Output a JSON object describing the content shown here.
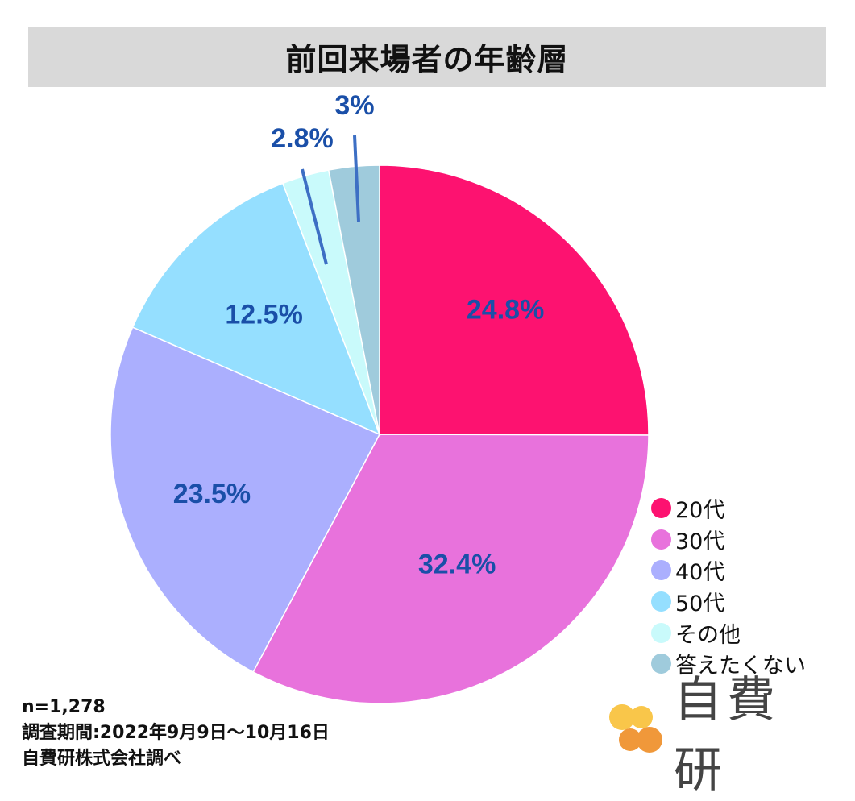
{
  "chart_data": {
    "type": "pie",
    "title": "前回来場者の年齢層",
    "slices": [
      {
        "label": "20代",
        "value": 24.8,
        "display": "24.8%",
        "color": "#fd1270"
      },
      {
        "label": "30代",
        "value": 32.4,
        "display": "32.4%",
        "color": "#e872dc"
      },
      {
        "label": "40代",
        "value": 23.5,
        "display": "23.5%",
        "color": "#abaffe"
      },
      {
        "label": "50代",
        "value": 12.5,
        "display": "12.5%",
        "color": "#95dfff"
      },
      {
        "label": "その他",
        "value": 2.8,
        "display": "2.8%",
        "color": "#c9fafb"
      },
      {
        "label": "答えたくない",
        "value": 3,
        "display": "3%",
        "color": "#9fcbdc"
      }
    ],
    "start": "12 o'clock",
    "direction": "clockwise",
    "label_color": "#1a4fa8",
    "legend_position": "right-bottom"
  },
  "footnote": {
    "sample": "n=1,278",
    "period": "調査期間:2022年9月9日～10月16日",
    "source": "自費研株式会社調べ"
  },
  "logo": {
    "text": "自費研",
    "colors": [
      "#f9c64a",
      "#f0983a"
    ]
  }
}
